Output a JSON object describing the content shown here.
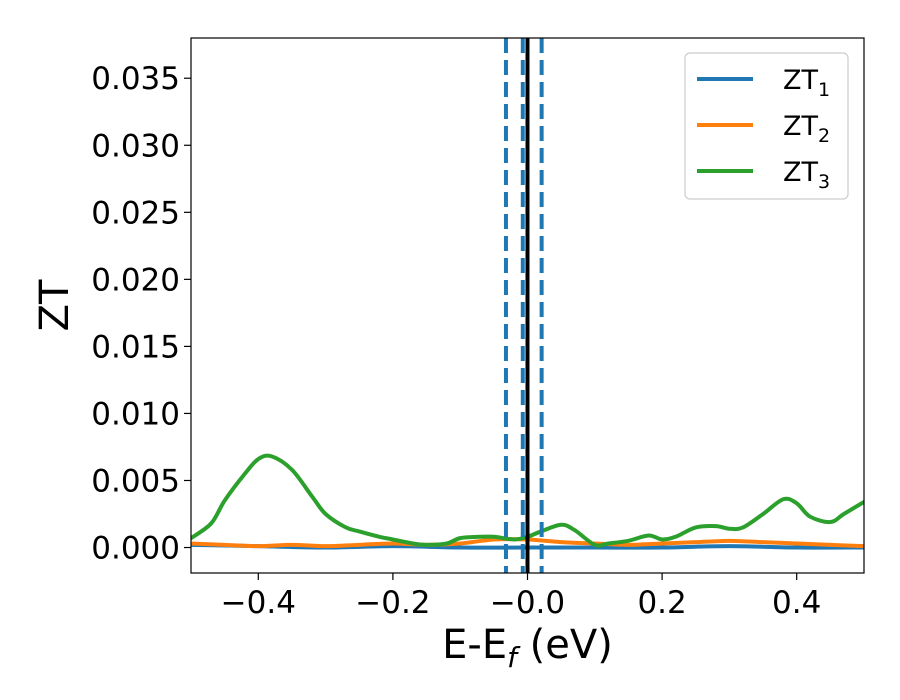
{
  "chart_data": {
    "type": "line",
    "xlabel": "E-E",
    "xlabel_sub": "f",
    "xlabel_unit": " (eV)",
    "ylabel": "ZT",
    "xlim": [
      -0.5,
      0.5
    ],
    "ylim": [
      -0.0019,
      0.038
    ],
    "xticks": [
      -0.4,
      -0.2,
      0.0,
      0.2,
      0.4
    ],
    "xtick_labels": [
      "−0.4",
      "−0.2",
      "−0.0",
      "0.2",
      "0.4"
    ],
    "yticks": [
      0.0,
      0.005,
      0.01,
      0.015,
      0.02,
      0.025,
      0.03,
      0.035
    ],
    "ytick_labels": [
      "0.000",
      "0.005",
      "0.010",
      "0.015",
      "0.020",
      "0.025",
      "0.030",
      "0.035"
    ],
    "grid": false,
    "legend_position": "top-right",
    "vlines": [
      {
        "x": 0.0,
        "style": "solid",
        "color": "#000000"
      },
      {
        "x": -0.007,
        "style": "dashed",
        "color": "#1f77b4"
      },
      {
        "x": -0.032,
        "style": "dashed",
        "color": "#1f77b4"
      },
      {
        "x": 0.021,
        "style": "dashed",
        "color": "#1f77b4"
      }
    ],
    "series": [
      {
        "name": "ZT",
        "sub": "1",
        "color": "#1f77b4",
        "x": [
          -0.5,
          -0.4,
          -0.3,
          -0.2,
          -0.1,
          0.0,
          0.1,
          0.2,
          0.3,
          0.4,
          0.5
        ],
        "y": [
          0.0002,
          0.0001,
          0.0,
          0.0001,
          0.0,
          0.0,
          0.0,
          0.0,
          0.0001,
          0.0,
          0.0
        ]
      },
      {
        "name": "ZT",
        "sub": "2",
        "color": "#ff7f0e",
        "x": [
          -0.5,
          -0.45,
          -0.4,
          -0.35,
          -0.3,
          -0.25,
          -0.2,
          -0.15,
          -0.1,
          -0.05,
          0.0,
          0.05,
          0.1,
          0.15,
          0.2,
          0.25,
          0.3,
          0.35,
          0.4,
          0.45,
          0.5
        ],
        "y": [
          0.0003,
          0.0002,
          0.0001,
          0.0002,
          0.0001,
          0.0002,
          0.0003,
          0.0002,
          0.0003,
          0.0006,
          0.0006,
          0.0004,
          0.0003,
          0.0002,
          0.0003,
          0.0004,
          0.0005,
          0.0004,
          0.0003,
          0.0002,
          0.0001
        ]
      },
      {
        "name": "ZT",
        "sub": "3",
        "color": "#2ca02c",
        "x": [
          -0.5,
          -0.47,
          -0.45,
          -0.42,
          -0.4,
          -0.38,
          -0.35,
          -0.32,
          -0.3,
          -0.27,
          -0.25,
          -0.22,
          -0.2,
          -0.17,
          -0.15,
          -0.12,
          -0.1,
          -0.07,
          -0.05,
          -0.02,
          0.0,
          0.02,
          0.05,
          0.07,
          0.1,
          0.12,
          0.15,
          0.18,
          0.2,
          0.22,
          0.25,
          0.28,
          0.3,
          0.32,
          0.35,
          0.38,
          0.4,
          0.42,
          0.45,
          0.47,
          0.5
        ],
        "y": [
          0.0007,
          0.0018,
          0.0035,
          0.0055,
          0.0066,
          0.0068,
          0.0058,
          0.0038,
          0.0025,
          0.0015,
          0.0012,
          0.0008,
          0.0006,
          0.0003,
          0.0002,
          0.0003,
          0.0007,
          0.0008,
          0.0008,
          0.0006,
          0.0008,
          0.0012,
          0.0017,
          0.0013,
          0.0002,
          0.0003,
          0.0005,
          0.0009,
          0.0006,
          0.0008,
          0.0015,
          0.0016,
          0.0014,
          0.0015,
          0.0025,
          0.0036,
          0.0033,
          0.0023,
          0.0019,
          0.0025,
          0.0034
        ]
      }
    ]
  }
}
